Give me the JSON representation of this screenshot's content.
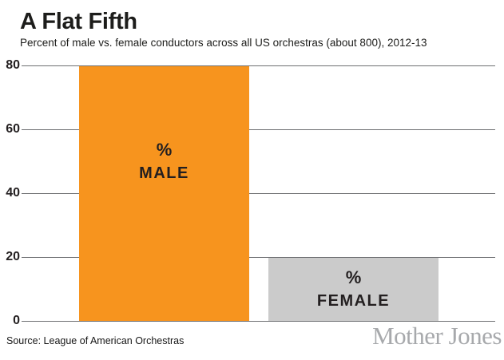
{
  "chart_data": {
    "type": "bar",
    "title": "A Flat Fifth",
    "subtitle": "Percent of male vs. female conductors across all US orchestras (about 800), 2012-13",
    "categories": [
      "Male",
      "Female"
    ],
    "values": [
      80,
      20
    ],
    "bar_labels": [
      [
        "%",
        "MALE"
      ],
      [
        "%",
        "FEMALE"
      ]
    ],
    "bar_colors": [
      "#F7941E",
      "#CBCBCB"
    ],
    "label_color": "#231F20",
    "yticks": [
      80,
      60,
      40,
      20,
      0
    ],
    "ylim": [
      0,
      80
    ],
    "grid": true,
    "gridline_color": "#6E6F72",
    "tick_label_color": "#231F20",
    "legend": "none"
  },
  "footer": {
    "source": "Source: League of American Orchestras",
    "logo": "Mother Jones",
    "logo_color": "#A7A9AC"
  }
}
